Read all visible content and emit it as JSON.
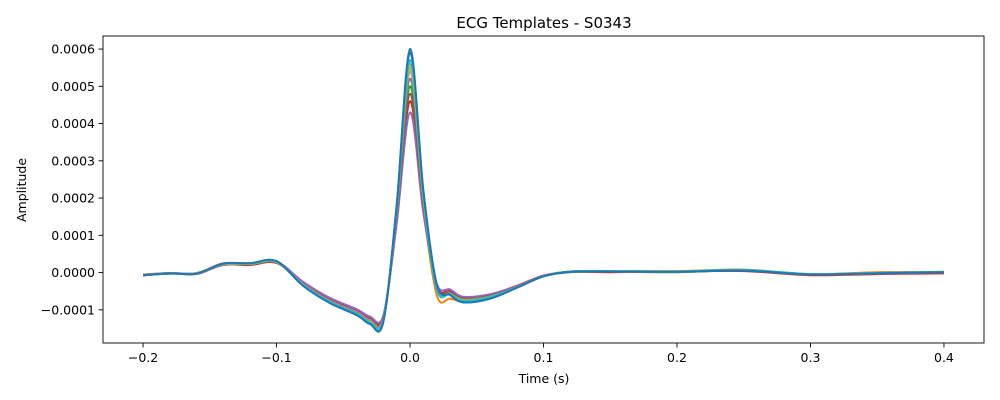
{
  "chart_data": {
    "type": "line",
    "title": "ECG Templates - S0343",
    "xlabel": "Time (s)",
    "ylabel": "Amplitude",
    "xlim": [
      -0.23,
      0.43
    ],
    "ylim": [
      -0.000189,
      0.000635
    ],
    "grid": false,
    "legend": "none",
    "x_ticks": [
      {
        "value": -0.2,
        "label": "−0.2"
      },
      {
        "value": -0.1,
        "label": "−0.1"
      },
      {
        "value": 0.0,
        "label": "0.0"
      },
      {
        "value": 0.1,
        "label": "0.1"
      },
      {
        "value": 0.2,
        "label": "0.2"
      },
      {
        "value": 0.3,
        "label": "0.3"
      },
      {
        "value": 0.4,
        "label": "0.4"
      }
    ],
    "y_ticks": [
      {
        "value": -0.0001,
        "label": "−0.0001"
      },
      {
        "value": 0.0,
        "label": "0.0000"
      },
      {
        "value": 0.0001,
        "label": "0.0001"
      },
      {
        "value": 0.0002,
        "label": "0.0002"
      },
      {
        "value": 0.0003,
        "label": "0.0003"
      },
      {
        "value": 0.0004,
        "label": "0.0004"
      },
      {
        "value": 0.0005,
        "label": "0.0005"
      },
      {
        "value": 0.0006,
        "label": "0.0006"
      }
    ],
    "x": [
      -0.2,
      -0.18,
      -0.16,
      -0.14,
      -0.12,
      -0.1,
      -0.08,
      -0.06,
      -0.04,
      -0.03,
      -0.02,
      -0.01,
      0.0,
      0.01,
      0.02,
      0.03,
      0.04,
      0.06,
      0.08,
      0.1,
      0.12,
      0.15,
      0.2,
      0.25,
      0.3,
      0.35,
      0.4
    ],
    "series": [
      {
        "color": "#1f77b4",
        "values": [
          -7e-06,
          -2e-06,
          -3e-06,
          2.3e-05,
          2.5e-05,
          2.8e-05,
          -3.5e-05,
          -8e-05,
          -0.000112,
          -0.000135,
          -0.00013,
          0.00018,
          0.00059,
          0.00022,
          -3e-05,
          -6e-05,
          -8e-05,
          -7e-05,
          -4e-05,
          -1e-05,
          2e-06,
          3e-06,
          2e-06,
          5e-06,
          -5e-06,
          -2e-06,
          1e-06
        ]
      },
      {
        "color": "#ff7f0e",
        "values": [
          -5e-06,
          -1e-06,
          -2e-06,
          2.5e-05,
          2.2e-05,
          3e-05,
          -3e-05,
          -7e-05,
          -0.000105,
          -0.000125,
          -0.00012,
          0.00017,
          0.00056,
          0.00018,
          -6e-05,
          -7e-05,
          -7.5e-05,
          -6e-05,
          -3.5e-05,
          -8e-06,
          3e-06,
          4e-06,
          4e-06,
          8e-06,
          -4e-06,
          1e-06,
          2e-06
        ]
      },
      {
        "color": "#2ca02c",
        "values": [
          -6e-06,
          -3e-06,
          -1e-06,
          2.2e-05,
          2.4e-05,
          2.7e-05,
          -3.2e-05,
          -7.5e-05,
          -0.000108,
          -0.00013,
          -0.000125,
          0.00015,
          0.0005,
          0.00019,
          -4e-05,
          -5.5e-05,
          -7e-05,
          -6.5e-05,
          -4e-05,
          -1e-05,
          1e-06,
          2e-06,
          1e-06,
          6e-06,
          -6e-06,
          -3e-06,
          0.0
        ]
      },
      {
        "color": "#d62728",
        "values": [
          -8e-06,
          -2e-06,
          -4e-06,
          2.1e-05,
          2e-05,
          2.6e-05,
          -2.8e-05,
          -7.2e-05,
          -0.0001,
          -0.00012,
          -0.000118,
          0.00014,
          0.00046,
          0.00017,
          -3.5e-05,
          -5e-05,
          -6.8e-05,
          -6e-05,
          -3.8e-05,
          -9e-06,
          2e-06,
          1e-06,
          3e-06,
          4e-06,
          -7e-06,
          -4e-06,
          -2e-06
        ]
      },
      {
        "color": "#9467bd",
        "values": [
          -6e-06,
          -1e-06,
          -2e-06,
          2e-05,
          2.3e-05,
          2.9e-05,
          -2.5e-05,
          -6.8e-05,
          -9.8e-05,
          -0.000118,
          -0.000115,
          0.00013,
          0.00043,
          0.00016,
          -3e-05,
          -4.5e-05,
          -6.5e-05,
          -5.8e-05,
          -3.6e-05,
          -8e-06,
          2e-06,
          3e-06,
          2e-06,
          7e-06,
          -5e-06,
          -1e-06,
          1e-06
        ]
      },
      {
        "color": "#8c564b",
        "values": [
          -7e-06,
          -2e-06,
          -3e-06,
          2.3e-05,
          2.2e-05,
          2.7e-05,
          -3e-05,
          -7.4e-05,
          -0.000104,
          -0.000124,
          -0.00012,
          0.00015,
          0.00048,
          0.00018,
          -3.8e-05,
          -5.2e-05,
          -7e-05,
          -6.2e-05,
          -3.9e-05,
          -9e-06,
          2e-06,
          3e-06,
          3e-06,
          6e-06,
          -5e-06,
          -2e-06,
          1e-06
        ]
      },
      {
        "color": "#e377c2",
        "values": [
          -6e-06,
          -2e-06,
          -2e-06,
          2.2e-05,
          2.3e-05,
          2.8e-05,
          -3.1e-05,
          -7.6e-05,
          -0.000106,
          -0.000128,
          -0.000123,
          0.00016,
          0.00054,
          0.0002,
          -4e-05,
          -5.6e-05,
          -7.2e-05,
          -6.4e-05,
          -4e-05,
          -1e-05,
          2e-06,
          3e-06,
          2e-06,
          6e-06,
          -5e-06,
          -2e-06,
          1e-06
        ]
      },
      {
        "color": "#7f7f7f",
        "values": [
          -7e-06,
          -2e-06,
          -3e-06,
          2.2e-05,
          2.2e-05,
          2.8e-05,
          -3.2e-05,
          -7.7e-05,
          -0.000108,
          -0.00013,
          -0.000125,
          0.00016,
          0.00052,
          0.00019,
          -4.2e-05,
          -5.6e-05,
          -7.2e-05,
          -6.4e-05,
          -4e-05,
          -1e-05,
          2e-06,
          3e-06,
          2e-06,
          6e-06,
          -5e-06,
          -2e-06,
          1e-06
        ]
      },
      {
        "color": "#bcbd22",
        "values": [
          -6e-06,
          -2e-06,
          -2e-06,
          2.3e-05,
          2.3e-05,
          2.9e-05,
          -3.3e-05,
          -7.8e-05,
          -0.00011,
          -0.000132,
          -0.000127,
          0.00017,
          0.00055,
          0.0002,
          -4.3e-05,
          -5.7e-05,
          -7.4e-05,
          -6.5e-05,
          -4e-05,
          -1e-05,
          3e-06,
          4e-06,
          3e-06,
          7e-06,
          -4e-06,
          -1e-06,
          2e-06
        ]
      },
      {
        "color": "#17becf",
        "values": [
          -7e-06,
          -2e-06,
          -3e-06,
          2.4e-05,
          2.4e-05,
          3e-05,
          -3.4e-05,
          -7.9e-05,
          -0.000111,
          -0.000134,
          -0.000128,
          0.00017,
          0.00057,
          0.00021,
          -4.4e-05,
          -5.8e-05,
          -7.6e-05,
          -6.6e-05,
          -4e-05,
          -1e-05,
          3e-06,
          4e-06,
          3e-06,
          7e-06,
          -4e-06,
          -1e-06,
          2e-06
        ]
      },
      {
        "color": "#1f77b4",
        "values": [
          -7e-06,
          -2e-06,
          -3e-06,
          2.4e-05,
          2.5e-05,
          3.1e-05,
          -3.6e-05,
          -8.2e-05,
          -0.000114,
          -0.000138,
          -0.000133,
          0.00018,
          0.0006,
          0.00022,
          -3.2e-05,
          -6e-05,
          -8e-05,
          -7e-05,
          -4.1e-05,
          -1e-05,
          2e-06,
          3e-06,
          2e-06,
          5e-06,
          -5e-06,
          -2e-06,
          1e-06
        ]
      }
    ]
  }
}
